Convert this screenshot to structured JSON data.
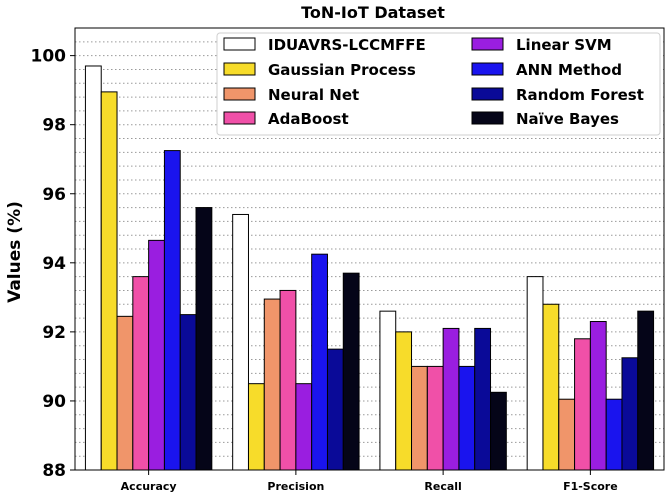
{
  "chart_data": {
    "type": "bar",
    "title": "ToN-IoT Dataset",
    "xlabel": "",
    "ylabel": "Values (%)",
    "ylim": [
      88,
      100.8
    ],
    "y_ticks": [
      88,
      90,
      92,
      94,
      96,
      98,
      100
    ],
    "grid": "horizontal dotted",
    "legend_position": "top-right",
    "categories": [
      "Accuracy",
      "Precision",
      "Recall",
      "F1-Score"
    ],
    "series": [
      {
        "name": "IDUAVRS-LCCMFFE",
        "color": "#ffffff",
        "values": [
          99.7,
          95.4,
          92.6,
          93.6
        ]
      },
      {
        "name": "Gaussian Process",
        "color": "#f7dc2a",
        "values": [
          98.95,
          90.5,
          92.0,
          92.8
        ]
      },
      {
        "name": "Neural Net",
        "color": "#f0956a",
        "values": [
          92.45,
          92.95,
          91.0,
          90.05
        ]
      },
      {
        "name": "AdaBoost",
        "color": "#f050a8",
        "values": [
          93.6,
          93.2,
          91.0,
          91.8
        ]
      },
      {
        "name": "Linear SVM",
        "color": "#9a1ee0",
        "values": [
          94.65,
          90.5,
          92.1,
          92.3
        ]
      },
      {
        "name": "ANN Method",
        "color": "#1a14ee",
        "values": [
          97.25,
          94.25,
          91.0,
          90.05
        ]
      },
      {
        "name": "Random Forest",
        "color": "#0a0a98",
        "values": [
          92.5,
          91.5,
          92.1,
          91.25
        ]
      },
      {
        "name": "Naïve Bayes",
        "color": "#050518",
        "values": [
          95.6,
          93.7,
          90.25,
          92.6
        ]
      }
    ]
  }
}
